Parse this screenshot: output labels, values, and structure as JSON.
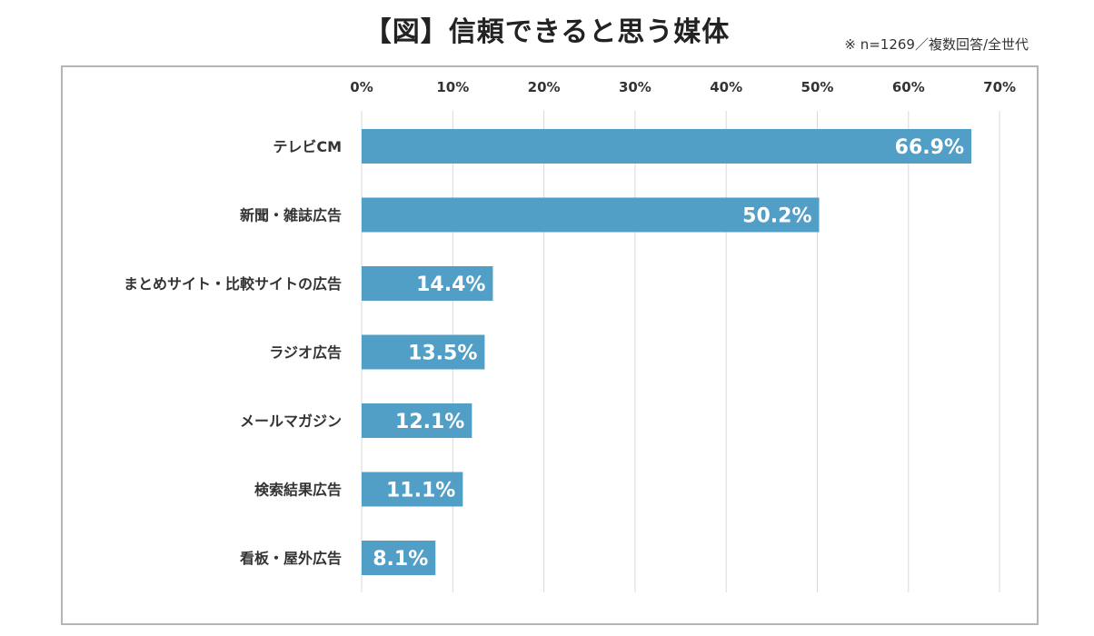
{
  "header": {
    "title": "【図】信頼できると思う媒体",
    "note": "※ n=1269／複数回答/全世代"
  },
  "colors": {
    "bar": "#519fc7",
    "grid": "#d9d9d9",
    "frame": "#b5b5b5"
  },
  "chart_data": {
    "type": "bar",
    "orientation": "horizontal",
    "title": "【図】信頼できると思う媒体",
    "xlim": [
      0,
      70
    ],
    "xticks": [
      "0%",
      "10%",
      "20%",
      "30%",
      "40%",
      "50%",
      "60%",
      "70%"
    ],
    "xtick_values": [
      0,
      10,
      20,
      30,
      40,
      50,
      60,
      70
    ],
    "x_axis_position": "top",
    "grid": true,
    "categories": [
      "テレビCM",
      "新聞・雑誌広告",
      "まとめサイト・比較サイトの広告",
      "ラジオ広告",
      "メールマガジン",
      "検索結果広告",
      "看板・屋外広告"
    ],
    "values": [
      66.9,
      50.2,
      14.4,
      13.5,
      12.1,
      11.1,
      8.1
    ],
    "value_labels": [
      "66.9%",
      "50.2%",
      "14.4%",
      "13.5%",
      "12.1%",
      "11.1%",
      "8.1%"
    ]
  }
}
